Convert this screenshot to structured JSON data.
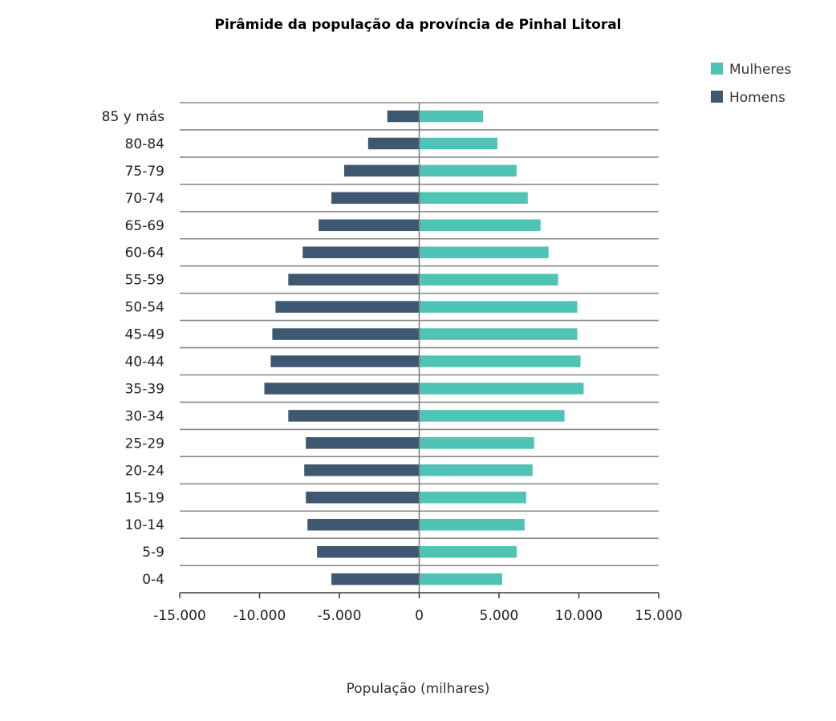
{
  "chart_data": {
    "type": "bar",
    "orientation": "horizontal",
    "title": "Pirâmide da população da província de Pinhal Litoral",
    "xlabel": "População (milhares)",
    "ylabel": "",
    "xlim": [
      -15000,
      15000
    ],
    "xticks": [
      -15000,
      -10000,
      -5000,
      0,
      5000,
      10000,
      15000
    ],
    "xtick_labels": [
      "-15.000",
      "-10.000",
      "-5.000",
      "0",
      "5.000",
      "10.000",
      "15.000"
    ],
    "categories": [
      "85 y más",
      "80-84",
      "75-79",
      "70-74",
      "65-69",
      "60-64",
      "55-59",
      "50-54",
      "45-49",
      "40-44",
      "35-39",
      "30-34",
      "25-29",
      "20-24",
      "15-19",
      "10-14",
      "5-9",
      "0-4"
    ],
    "series": [
      {
        "name": "Mulheres",
        "color": "#4fc3b4",
        "values": [
          4000,
          4900,
          6100,
          6800,
          7600,
          8100,
          8700,
          9900,
          9900,
          10100,
          10300,
          9100,
          7200,
          7100,
          6700,
          6600,
          6100,
          5200
        ]
      },
      {
        "name": "Homens",
        "color": "#3d5870",
        "values": [
          -2000,
          -3200,
          -4700,
          -5500,
          -6300,
          -7300,
          -8200,
          -9000,
          -9200,
          -9300,
          -9700,
          -8200,
          -7100,
          -7200,
          -7100,
          -7000,
          -6400,
          -5500
        ]
      }
    ],
    "legend": {
      "position": "top-right",
      "entries": [
        "Mulheres",
        "Homens"
      ]
    },
    "grid": true
  }
}
